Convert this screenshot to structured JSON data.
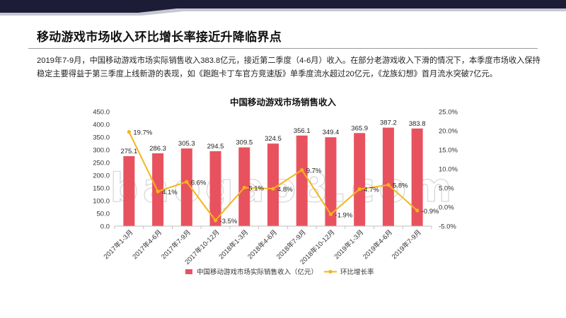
{
  "page": {
    "title": "移动游戏市场收入环比增长率接近升降临界点",
    "description": "2019年7-9月，中国移动游戏市场实际销售收入383.8亿元，接近第二季度（4-6月）收入。在部分老游戏收入下滑的情况下，本季度市场收入保持稳定主要得益于第三季度上线新游的表现，如《跑跑卡丁车官方竞速版》单季度流水超过20亿元，《龙族幻想》首月流水突破7亿元。",
    "watermark": "baogao8.com"
  },
  "colors": {
    "band_dark": "#1c1c36",
    "band_light": "#c7c7d3",
    "bar": "#e8525e",
    "line": "#f5b51b"
  },
  "chart_data": {
    "type": "bar",
    "title": "中国移动游戏市场销售收入",
    "categories": [
      "2017年1-3月",
      "2017年4-6月",
      "2017年7-9月",
      "2017年10-12月",
      "2018年1-3月",
      "2018年4-6月",
      "2018年7-9月",
      "2018年10-12月",
      "2019年1-3月",
      "2019年4-6月",
      "2019年7-9月"
    ],
    "series": [
      {
        "name": "中国移动游戏市场实际销售收入（亿元）",
        "type": "bar",
        "axis": "left",
        "values": [
          275.1,
          286.3,
          305.3,
          294.5,
          309.5,
          324.5,
          356.1,
          349.4,
          365.9,
          387.2,
          383.8
        ],
        "labels": [
          "275.1",
          "286.3",
          "305.3",
          "294.5",
          "309.5",
          "324.5",
          "356.1",
          "349.4",
          "365.9",
          "387.2",
          "383.8"
        ]
      },
      {
        "name": "环比增长率",
        "type": "line",
        "axis": "right",
        "values": [
          19.7,
          4.1,
          6.6,
          -3.5,
          5.1,
          4.8,
          9.7,
          -1.9,
          4.7,
          5.8,
          -0.9
        ],
        "labels": [
          "19.7%",
          "4.1%",
          "6.6%",
          "-3.5%",
          "5.1%",
          "4.8%",
          "9.7%",
          "-1.9%",
          "4.7%",
          "5.8%",
          "-0.9%"
        ]
      }
    ],
    "y_left": {
      "range": [
        0,
        450
      ],
      "ticks": [
        0,
        50,
        100,
        150,
        200,
        250,
        300,
        350,
        400,
        450
      ],
      "tick_labels": [
        "0.0",
        "50.0",
        "100.0",
        "150.0",
        "200.0",
        "250.0",
        "300.0",
        "350.0",
        "400.0",
        "450.0"
      ]
    },
    "y_right": {
      "range": [
        -5,
        25
      ],
      "ticks": [
        -5,
        0,
        5,
        10,
        15,
        20,
        25
      ],
      "tick_labels": [
        "-5.0%",
        "0.0%",
        "5.0%",
        "10.0%",
        "15.0%",
        "20.0%",
        "25.0%"
      ]
    },
    "legend_position": "bottom",
    "grid": false
  }
}
